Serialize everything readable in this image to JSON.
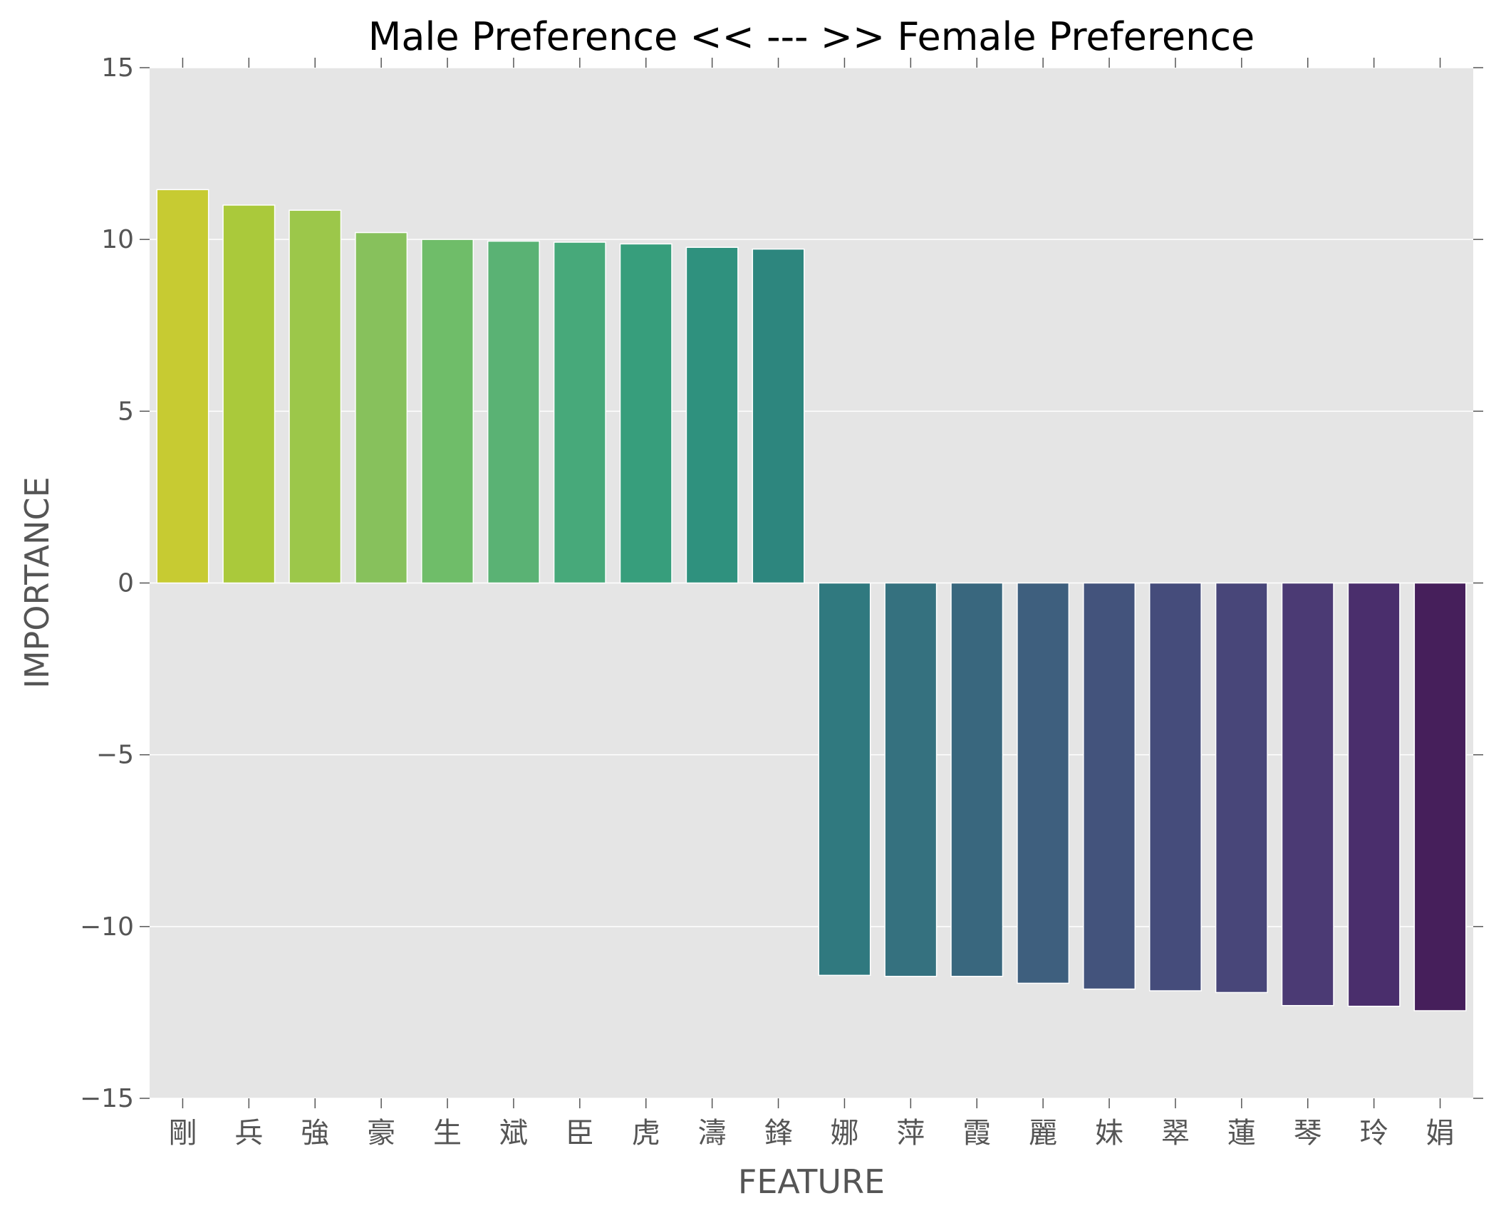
{
  "chart_data": {
    "type": "bar",
    "title": "Male Preference << --- >> Female Preference",
    "xlabel": "FEATURE",
    "ylabel": "IMPORTANCE",
    "ylim": [
      -15,
      15
    ],
    "yticks": [
      15,
      10,
      5,
      0,
      -5,
      -10,
      -15
    ],
    "ytick_labels": [
      "15",
      "10",
      "5",
      "0",
      "−5",
      "−10",
      "−15"
    ],
    "grid": true,
    "categories": [
      "剛",
      "兵",
      "強",
      "豪",
      "生",
      "斌",
      "臣",
      "虎",
      "濤",
      "鋒",
      "娜",
      "萍",
      "霞",
      "麗",
      "妹",
      "翠",
      "蓮",
      "琴",
      "玲",
      "娟"
    ],
    "values": [
      11.45,
      11.0,
      10.85,
      10.2,
      10.0,
      9.95,
      9.92,
      9.87,
      9.77,
      9.72,
      -11.42,
      -11.45,
      -11.45,
      -11.65,
      -11.82,
      -11.87,
      -11.92,
      -12.3,
      -12.32,
      -12.45
    ],
    "colors": [
      "#c7cb32",
      "#aac93b",
      "#9cc74a",
      "#87c15c",
      "#6fbd69",
      "#5ab274",
      "#47a97a",
      "#379e7c",
      "#2f917e",
      "#2d867e",
      "#30797f",
      "#35717f",
      "#39677e",
      "#3e5f7e",
      "#43537c",
      "#454c7b",
      "#484679",
      "#4b3a74",
      "#4a2e6c",
      "#461f5b"
    ]
  }
}
